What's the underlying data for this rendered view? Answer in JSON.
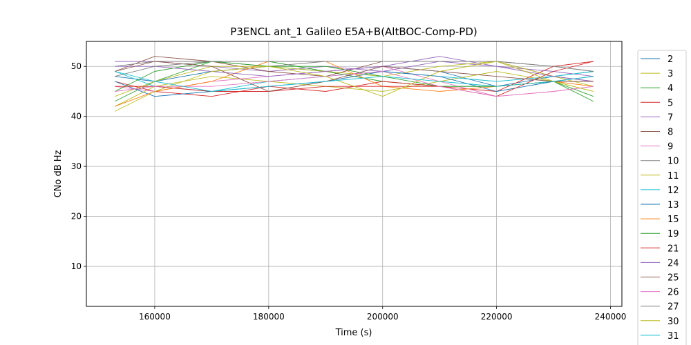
{
  "chart_data": {
    "type": "line",
    "title": "P3ENCL ant_1 Galileo E5A+B(AltBOC-Comp-PD)",
    "xlabel": "Time (s)",
    "ylabel": "CNo dB Hz",
    "xlim": [
      148000,
      242000
    ],
    "ylim": [
      2,
      55
    ],
    "xticks": [
      160000,
      180000,
      200000,
      220000,
      240000
    ],
    "yticks": [
      10,
      20,
      30,
      40,
      50
    ],
    "grid": true,
    "legend_position": "right-outside",
    "series": [
      {
        "name": "2",
        "color": "#1f77b4",
        "x": [
          153000,
          160000,
          170000,
          180000,
          190000,
          200000,
          210000,
          220000,
          230000,
          237000
        ],
        "y": [
          48,
          47,
          49,
          50,
          49,
          50,
          49,
          46,
          48,
          49
        ]
      },
      {
        "name": "3",
        "color": "#bcbd22",
        "x": [
          153000,
          160000,
          170000,
          180000,
          190000,
          200000,
          210000,
          220000,
          230000,
          237000
        ],
        "y": [
          42,
          46,
          48,
          47,
          46,
          45,
          47,
          49,
          47,
          45
        ]
      },
      {
        "name": "4",
        "color": "#2ca02c",
        "x": [
          153000,
          160000,
          170000,
          180000,
          190000,
          200000,
          210000,
          220000,
          230000,
          237000
        ],
        "y": [
          43,
          47,
          51,
          51,
          49,
          47,
          46,
          46,
          47,
          43
        ]
      },
      {
        "name": "5",
        "color": "#d62728",
        "x": [
          153000,
          160000,
          170000,
          180000,
          190000,
          200000,
          210000,
          220000,
          230000,
          237000
        ],
        "y": [
          47,
          45,
          44,
          46,
          45,
          47,
          46,
          45,
          50,
          51
        ]
      },
      {
        "name": "7",
        "color": "#9467bd",
        "x": [
          153000,
          160000,
          170000,
          180000,
          190000,
          200000,
          210000,
          220000,
          230000,
          237000
        ],
        "y": [
          51,
          51,
          50,
          49,
          50,
          49,
          51,
          50,
          49,
          48
        ]
      },
      {
        "name": "8",
        "color": "#8c564b",
        "x": [
          153000,
          160000,
          170000,
          180000,
          190000,
          200000,
          210000,
          220000,
          230000,
          237000
        ],
        "y": [
          49,
          52,
          51,
          49,
          48,
          51,
          51,
          51,
          48,
          47
        ]
      },
      {
        "name": "9",
        "color": "#e377c2",
        "x": [
          153000,
          160000,
          170000,
          180000,
          190000,
          200000,
          210000,
          220000,
          230000,
          237000
        ],
        "y": [
          46,
          45,
          47,
          48,
          49,
          50,
          47,
          44,
          45,
          46
        ]
      },
      {
        "name": "10",
        "color": "#7f7f7f",
        "x": [
          153000,
          160000,
          170000,
          180000,
          190000,
          200000,
          210000,
          220000,
          230000,
          237000
        ],
        "y": [
          50,
          51,
          51,
          50,
          51,
          51,
          51,
          51,
          50,
          49
        ]
      },
      {
        "name": "11",
        "color": "#bcbd22",
        "x": [
          153000,
          160000,
          170000,
          180000,
          190000,
          200000,
          210000,
          220000,
          230000,
          237000
        ],
        "y": [
          44,
          47,
          50,
          50,
          49,
          48,
          50,
          51,
          48,
          46
        ]
      },
      {
        "name": "12",
        "color": "#17becf",
        "x": [
          153000,
          160000,
          170000,
          180000,
          190000,
          200000,
          210000,
          220000,
          230000,
          237000
        ],
        "y": [
          49,
          46,
          45,
          47,
          48,
          49,
          48,
          47,
          48,
          49
        ]
      },
      {
        "name": "13",
        "color": "#1f77b4",
        "x": [
          153000,
          160000,
          170000,
          180000,
          190000,
          200000,
          210000,
          220000,
          230000,
          237000
        ],
        "y": [
          47,
          44,
          45,
          46,
          47,
          49,
          48,
          45,
          47,
          48
        ]
      },
      {
        "name": "15",
        "color": "#ff7f0e",
        "x": [
          153000,
          160000,
          170000,
          180000,
          190000,
          200000,
          210000,
          220000,
          230000,
          237000
        ],
        "y": [
          42,
          45,
          47,
          51,
          51,
          46,
          45,
          46,
          47,
          46
        ]
      },
      {
        "name": "19",
        "color": "#2ca02c",
        "x": [
          153000,
          160000,
          170000,
          180000,
          190000,
          200000,
          210000,
          220000,
          230000,
          237000
        ],
        "y": [
          45,
          49,
          51,
          50,
          50,
          48,
          46,
          46,
          47,
          44
        ]
      },
      {
        "name": "21",
        "color": "#d62728",
        "x": [
          153000,
          160000,
          170000,
          180000,
          190000,
          200000,
          210000,
          220000,
          230000,
          237000
        ],
        "y": [
          46,
          46,
          45,
          45,
          46,
          46,
          46,
          44,
          49,
          51
        ]
      },
      {
        "name": "24",
        "color": "#9467bd",
        "x": [
          153000,
          160000,
          170000,
          180000,
          190000,
          200000,
          210000,
          220000,
          230000,
          237000
        ],
        "y": [
          50,
          50,
          49,
          48,
          49,
          50,
          52,
          50,
          48,
          47
        ]
      },
      {
        "name": "25",
        "color": "#8c564b",
        "x": [
          153000,
          160000,
          170000,
          180000,
          190000,
          200000,
          210000,
          220000,
          230000,
          237000
        ],
        "y": [
          49,
          51,
          50,
          45,
          47,
          50,
          49,
          48,
          47,
          47
        ]
      },
      {
        "name": "26",
        "color": "#e377c2",
        "x": [
          153000,
          160000,
          170000,
          180000,
          190000,
          200000,
          210000,
          220000,
          230000,
          237000
        ],
        "y": [
          45,
          46,
          46,
          47,
          48,
          49,
          46,
          44,
          45,
          46
        ]
      },
      {
        "name": "27",
        "color": "#7f7f7f",
        "x": [
          153000,
          160000,
          170000,
          180000,
          190000,
          200000,
          210000,
          220000,
          230000,
          237000
        ],
        "y": [
          48,
          50,
          51,
          51,
          51,
          51,
          51,
          51,
          50,
          49
        ]
      },
      {
        "name": "30",
        "color": "#bcbd22",
        "x": [
          153000,
          160000,
          170000,
          180000,
          190000,
          200000,
          210000,
          220000,
          230000,
          237000
        ],
        "y": [
          41,
          45,
          49,
          50,
          48,
          44,
          49,
          51,
          47,
          45
        ]
      },
      {
        "name": "31",
        "color": "#17becf",
        "x": [
          153000,
          160000,
          170000,
          180000,
          190000,
          200000,
          210000,
          220000,
          230000,
          237000
        ],
        "y": [
          49,
          47,
          45,
          46,
          47,
          48,
          47,
          46,
          47,
          48
        ]
      }
    ]
  }
}
